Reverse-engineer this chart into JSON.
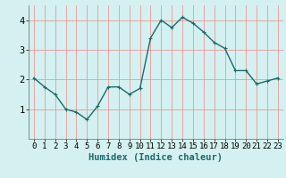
{
  "x": [
    0,
    1,
    2,
    3,
    4,
    5,
    6,
    7,
    8,
    9,
    10,
    11,
    12,
    13,
    14,
    15,
    16,
    17,
    18,
    19,
    20,
    21,
    22,
    23
  ],
  "y": [
    2.05,
    1.75,
    1.5,
    1.0,
    0.9,
    0.65,
    1.1,
    1.75,
    1.75,
    1.5,
    1.7,
    3.4,
    4.0,
    3.75,
    4.1,
    3.9,
    3.6,
    3.25,
    3.05,
    2.3,
    2.3,
    1.85,
    1.95,
    2.05
  ],
  "xlabel": "Humidex (Indice chaleur)",
  "ylim": [
    0,
    4.5
  ],
  "xlim": [
    -0.5,
    23.5
  ],
  "yticks": [
    1,
    2,
    3,
    4
  ],
  "xticks": [
    0,
    1,
    2,
    3,
    4,
    5,
    6,
    7,
    8,
    9,
    10,
    11,
    12,
    13,
    14,
    15,
    16,
    17,
    18,
    19,
    20,
    21,
    22,
    23
  ],
  "line_color": "#1a6b6b",
  "marker": "+",
  "bg_color": "#d4f0f0",
  "grid_color": "#ee8888",
  "xlabel_fontsize": 7.5,
  "tick_fontsize": 6.5,
  "ytick_fontsize": 7.5,
  "linewidth": 1.0,
  "markersize": 3.5
}
